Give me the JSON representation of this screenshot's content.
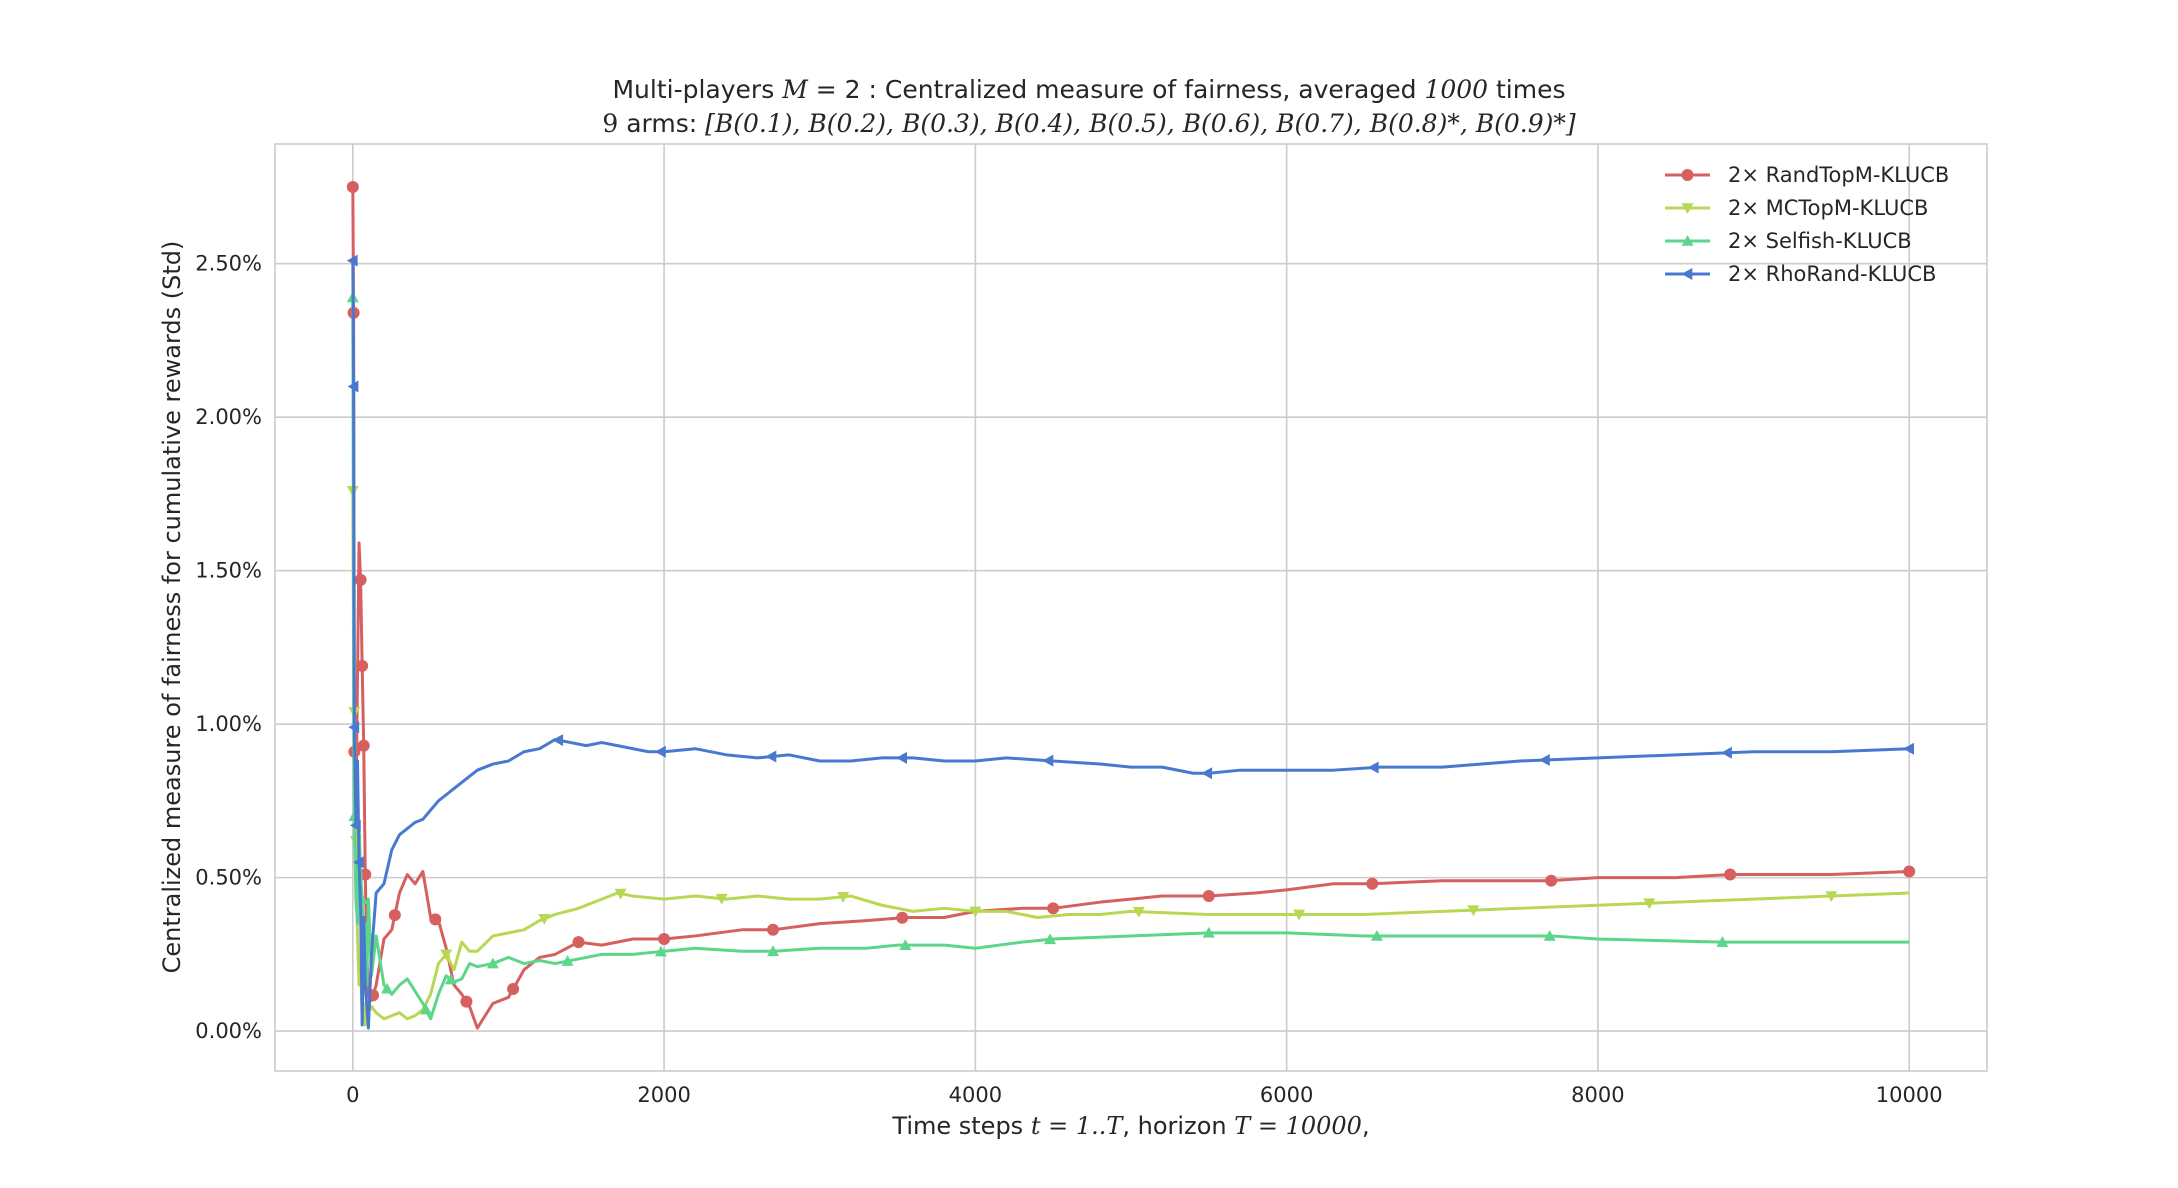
{
  "chart_data": {
    "type": "line",
    "title_line1": "Multi-players M = 2 : Centralized measure of fairness, averaged 1000 times",
    "title_line2": "9 arms: [B(0.1), B(0.2), B(0.3), B(0.4), B(0.5), B(0.6), B(0.7), B(0.8)*, B(0.9)*]",
    "xlabel": "Time steps t = 1..T, horizon T = 10000,",
    "ylabel": "Centralized measure of fairness for cumulative rewards (Std)",
    "xlim": [
      -500,
      10500
    ],
    "ylim": [
      -0.0013,
      0.0289
    ],
    "xticks": [
      0,
      2000,
      4000,
      6000,
      8000,
      10000
    ],
    "xtick_labels": [
      "0",
      "2000",
      "4000",
      "6000",
      "8000",
      "10000"
    ],
    "yticks": [
      0.0,
      0.005,
      0.01,
      0.015,
      0.02,
      0.025
    ],
    "ytick_labels": [
      "0.00%",
      "0.50%",
      "1.00%",
      "1.50%",
      "2.00%",
      "2.50%"
    ],
    "grid": true,
    "legend_position": "top-right",
    "series": [
      {
        "name": "2× RandTopM-KLUCB",
        "color": "#d65f5f",
        "marker": "circle",
        "x": [
          0,
          5,
          10,
          20,
          30,
          40,
          50,
          60,
          70,
          80,
          90,
          100,
          120,
          150,
          200,
          250,
          300,
          350,
          400,
          450,
          500,
          550,
          600,
          650,
          700,
          750,
          800,
          850,
          900,
          1000,
          1100,
          1200,
          1300,
          1450,
          1600,
          1800,
          2000,
          2200,
          2500,
          2700,
          3000,
          3300,
          3550,
          3800,
          4000,
          4300,
          4500,
          4800,
          5000,
          5200,
          5500,
          5800,
          6000,
          6300,
          6550,
          7000,
          7500,
          7700,
          8000,
          8500,
          8850,
          9200,
          9500,
          10000
        ],
        "y": [
          0.0275,
          0.0234,
          0.0091,
          0.0071,
          0.0115,
          0.0159,
          0.0147,
          0.0119,
          0.0093,
          0.0051,
          0.0025,
          0.0012,
          0.001,
          0.0015,
          0.003,
          0.0033,
          0.0045,
          0.0051,
          0.0048,
          0.0052,
          0.0037,
          0.0036,
          0.0027,
          0.0015,
          0.0012,
          0.0008,
          0.0001,
          0.0005,
          0.0009,
          0.0011,
          0.002,
          0.0024,
          0.0025,
          0.0029,
          0.0028,
          0.003,
          0.003,
          0.0031,
          0.0033,
          0.0033,
          0.0035,
          0.0036,
          0.0037,
          0.0037,
          0.0039,
          0.004,
          0.004,
          0.0042,
          0.0043,
          0.0044,
          0.0044,
          0.0045,
          0.0046,
          0.0048,
          0.0048,
          0.0049,
          0.0049,
          0.0049,
          0.005,
          0.005,
          0.0051,
          0.0051,
          0.0051,
          0.0052
        ],
        "marker_x": [
          0,
          5,
          10,
          50,
          60,
          70,
          80,
          130,
          270,
          530,
          730,
          1030,
          1450,
          2000,
          2700,
          3530,
          4500,
          5500,
          6550,
          7700,
          8850,
          10000
        ]
      },
      {
        "name": "2× MCTopM-KLUCB",
        "color": "#b8d854",
        "marker": "triangle-down",
        "x": [
          0,
          5,
          10,
          20,
          30,
          40,
          50,
          60,
          70,
          80,
          90,
          100,
          120,
          150,
          200,
          250,
          300,
          350,
          400,
          450,
          500,
          550,
          600,
          650,
          700,
          750,
          800,
          900,
          1000,
          1100,
          1200,
          1300,
          1450,
          1600,
          1700,
          1800,
          2000,
          2200,
          2400,
          2600,
          2800,
          3000,
          3200,
          3400,
          3600,
          3800,
          4000,
          4200,
          4400,
          4600,
          4800,
          5000,
          5500,
          6000,
          6500,
          7000,
          7500,
          8000,
          8500,
          9000,
          9500,
          10000
        ],
        "y": [
          0.0176,
          0.0123,
          0.0104,
          0.0062,
          0.0031,
          0.0015,
          0.0023,
          0.0005,
          0.0009,
          0.0002,
          0.0004,
          0.0006,
          0.0008,
          0.0006,
          0.0004,
          0.0005,
          0.0006,
          0.0004,
          0.0005,
          0.0007,
          0.0012,
          0.0022,
          0.0025,
          0.002,
          0.0029,
          0.0026,
          0.0026,
          0.0031,
          0.0032,
          0.0033,
          0.0036,
          0.0038,
          0.004,
          0.0043,
          0.0045,
          0.0044,
          0.0043,
          0.0044,
          0.0043,
          0.0044,
          0.0043,
          0.0043,
          0.0044,
          0.0041,
          0.0039,
          0.004,
          0.0039,
          0.0039,
          0.0037,
          0.0038,
          0.0038,
          0.0039,
          0.0038,
          0.0038,
          0.0038,
          0.0039,
          0.004,
          0.0041,
          0.0042,
          0.0043,
          0.0044,
          0.0045
        ],
        "marker_x": [
          0,
          10,
          20,
          600,
          1230,
          1720,
          2370,
          3150,
          4000,
          5050,
          6080,
          7200,
          8330,
          9500
        ]
      },
      {
        "name": "2× Selfish-KLUCB",
        "color": "#5cd68b",
        "marker": "triangle-up",
        "x": [
          0,
          5,
          10,
          20,
          30,
          40,
          50,
          60,
          70,
          80,
          90,
          100,
          120,
          150,
          200,
          250,
          300,
          350,
          400,
          450,
          500,
          550,
          600,
          650,
          700,
          750,
          800,
          900,
          1000,
          1100,
          1200,
          1300,
          1400,
          1500,
          1600,
          1800,
          2000,
          2200,
          2500,
          2700,
          3000,
          3300,
          3500,
          3800,
          4000,
          4300,
          4500,
          5000,
          5500,
          6000,
          6500,
          7000,
          7700,
          8000,
          8800,
          9500,
          10000
        ],
        "y": [
          0.0239,
          0.0123,
          0.007,
          0.0043,
          0.0035,
          0.0068,
          0.0052,
          0.0043,
          0.0028,
          0.0035,
          0.0015,
          0.0043,
          0.0018,
          0.0031,
          0.0015,
          0.0012,
          0.0015,
          0.0017,
          0.0013,
          0.0009,
          0.0004,
          0.0012,
          0.0018,
          0.0016,
          0.0017,
          0.0022,
          0.0021,
          0.0022,
          0.0024,
          0.0022,
          0.0023,
          0.0022,
          0.0023,
          0.0024,
          0.0025,
          0.0025,
          0.0026,
          0.0027,
          0.0026,
          0.0026,
          0.0027,
          0.0027,
          0.0028,
          0.0028,
          0.0027,
          0.0029,
          0.003,
          0.0031,
          0.0032,
          0.0032,
          0.0031,
          0.0031,
          0.0031,
          0.003,
          0.0029,
          0.0029,
          0.0029
        ],
        "marker_x": [
          0,
          10,
          60,
          110,
          220,
          470,
          630,
          900,
          1380,
          1980,
          2700,
          3550,
          4480,
          5500,
          6580,
          7690,
          8800
        ]
      },
      {
        "name": "2× RhoRand-KLUCB",
        "color": "#4878d0",
        "marker": "triangle-left",
        "x": [
          0,
          5,
          10,
          20,
          30,
          40,
          50,
          60,
          70,
          80,
          90,
          100,
          120,
          150,
          200,
          250,
          300,
          350,
          400,
          450,
          500,
          550,
          600,
          650,
          700,
          750,
          800,
          900,
          1000,
          1100,
          1200,
          1300,
          1400,
          1500,
          1600,
          1700,
          1800,
          1900,
          2000,
          2200,
          2400,
          2600,
          2800,
          3000,
          3200,
          3400,
          3600,
          3800,
          4000,
          4200,
          4500,
          4800,
          5000,
          5200,
          5400,
          5500,
          5700,
          6000,
          6300,
          6600,
          7000,
          7500,
          8000,
          8500,
          9000,
          9500,
          10000
        ],
        "y": [
          0.0251,
          0.021,
          0.0099,
          0.0067,
          0.0088,
          0.0055,
          0.004,
          0.0002,
          0.0037,
          0.0015,
          0.0008,
          0.0001,
          0.0025,
          0.0045,
          0.0048,
          0.0059,
          0.0064,
          0.0066,
          0.0068,
          0.0069,
          0.0072,
          0.0075,
          0.0077,
          0.0079,
          0.0081,
          0.0083,
          0.0085,
          0.0087,
          0.0088,
          0.0091,
          0.0092,
          0.0095,
          0.0094,
          0.0093,
          0.0094,
          0.0093,
          0.0092,
          0.0091,
          0.0091,
          0.0092,
          0.009,
          0.0089,
          0.009,
          0.0088,
          0.0088,
          0.0089,
          0.0089,
          0.0088,
          0.0088,
          0.0089,
          0.0088,
          0.0087,
          0.0086,
          0.0086,
          0.0084,
          0.0084,
          0.0085,
          0.0085,
          0.0085,
          0.0086,
          0.0086,
          0.0088,
          0.0089,
          0.009,
          0.0091,
          0.0091,
          0.0092
        ],
        "marker_x": [
          0,
          5,
          10,
          20,
          40,
          1320,
          1980,
          2690,
          3530,
          4470,
          5490,
          6560,
          7660,
          8830,
          10000
        ]
      }
    ]
  }
}
